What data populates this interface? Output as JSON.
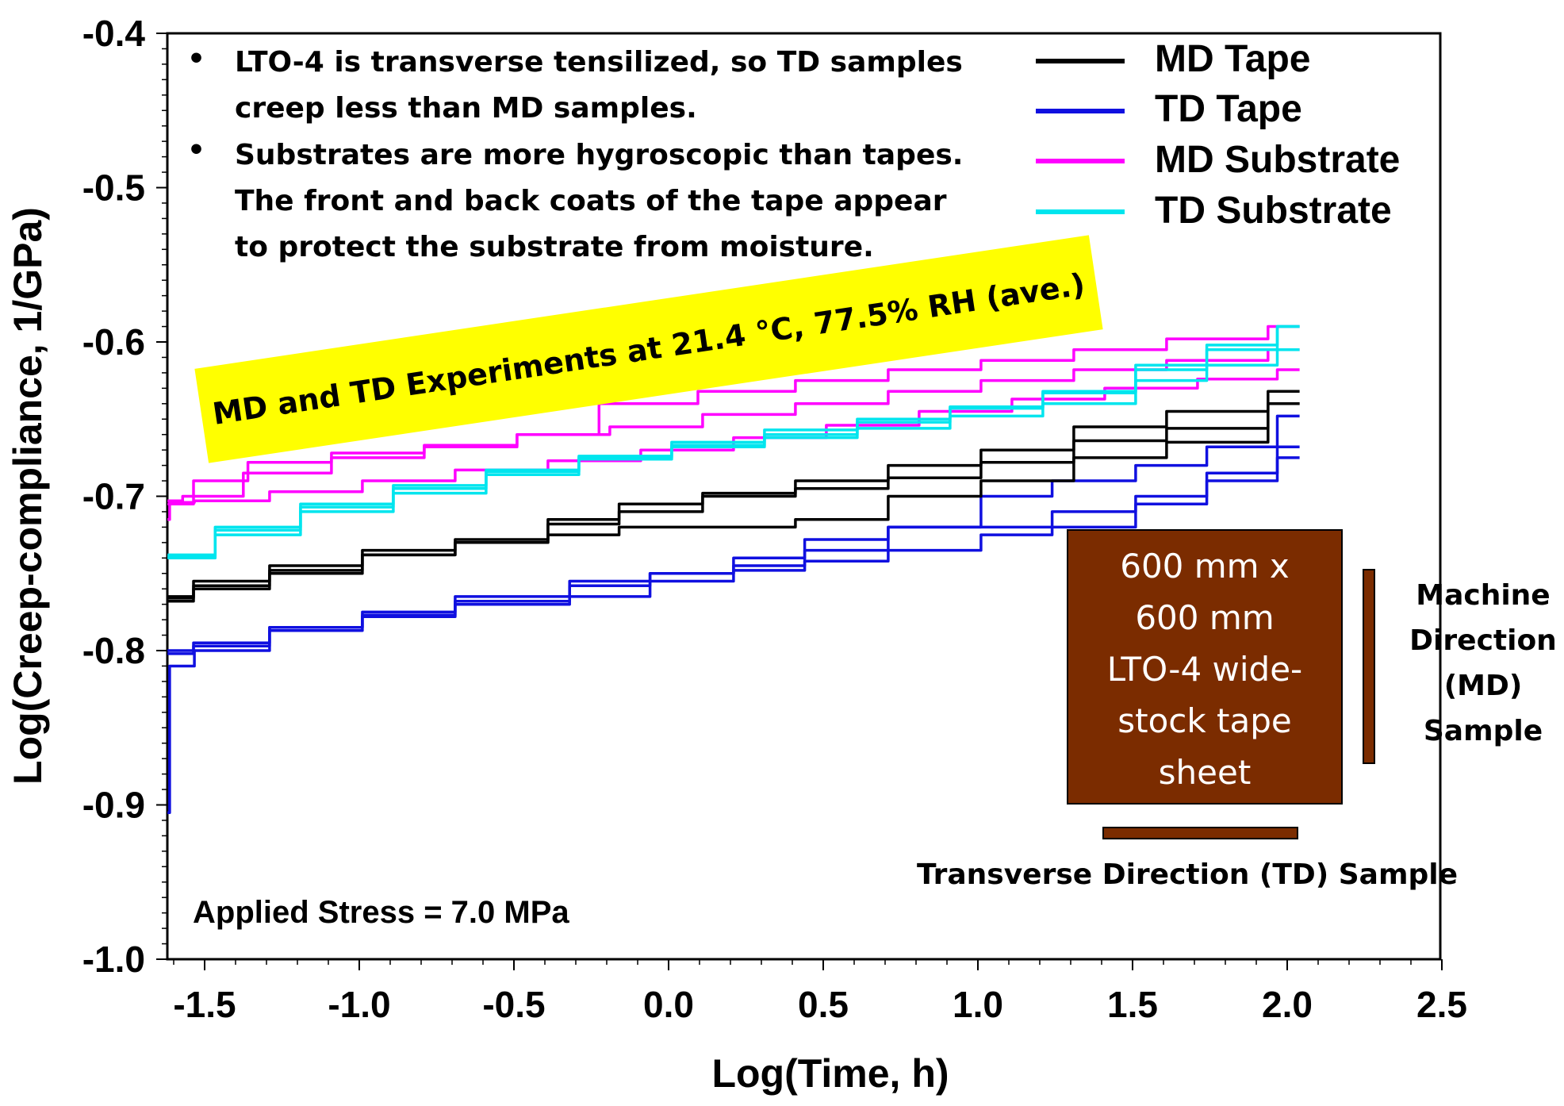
{
  "chart_data": {
    "type": "line",
    "xlabel": "Log(Time, h)",
    "ylabel": "Log(Creep-compliance, 1/GPa)",
    "xlim": [
      -1.65,
      2.5
    ],
    "ylim": [
      -1.0,
      -0.4
    ],
    "x_ticks": [
      -1.5,
      -1.0,
      -0.5,
      0.0,
      0.5,
      1.0,
      1.5,
      2.0,
      2.5
    ],
    "x_tick_labels": [
      "-1.5",
      "-1.0",
      "-0.5",
      "0.0",
      "0.5",
      "1.0",
      "1.5",
      "2.0",
      "2.5"
    ],
    "y_ticks": [
      -1.0,
      -0.9,
      -0.8,
      -0.7,
      -0.6,
      -0.5,
      -0.4
    ],
    "y_tick_labels": [
      "-1.0",
      "-0.9",
      "-0.8",
      "-0.7",
      "-0.6",
      "-0.5",
      "-0.4"
    ],
    "grid": false,
    "legend_position": "top-right",
    "legend": [
      {
        "label": "MD Tape",
        "color": "#000000"
      },
      {
        "label": "TD Tape",
        "color": "#1010e0"
      },
      {
        "label": "MD Substrate",
        "color": "#ff00ff"
      },
      {
        "label": "TD Substrate",
        "color": "#00e5ee"
      }
    ],
    "series": [
      {
        "group": "MD Tape",
        "color": "#000000",
        "x": [
          -1.62,
          -1.5,
          -1.2,
          -0.9,
          -0.6,
          -0.3,
          -0.1,
          0.2,
          0.5,
          0.8,
          1.1,
          1.4,
          1.7,
          2.04
        ],
        "y": [
          -0.765,
          -0.755,
          -0.745,
          -0.735,
          -0.73,
          -0.718,
          -0.71,
          -0.7,
          -0.69,
          -0.68,
          -0.67,
          -0.655,
          -0.645,
          -0.632
        ]
      },
      {
        "group": "MD Tape",
        "color": "#000000",
        "x": [
          -1.62,
          -1.5,
          -1.2,
          -0.9,
          -0.6,
          -0.3,
          -0.1,
          0.2,
          0.5,
          0.8,
          1.1,
          1.4,
          1.7,
          2.04
        ],
        "y": [
          -0.766,
          -0.758,
          -0.748,
          -0.738,
          -0.73,
          -0.715,
          -0.705,
          -0.698,
          -0.695,
          -0.688,
          -0.678,
          -0.664,
          -0.656,
          -0.64
        ]
      },
      {
        "group": "MD Tape",
        "color": "#000000",
        "x": [
          -1.62,
          -1.5,
          -1.2,
          -0.9,
          -0.6,
          -0.3,
          -0.1,
          0.2,
          0.5,
          0.8,
          1.1,
          1.4,
          1.7,
          2.04
        ],
        "y": [
          -0.768,
          -0.76,
          -0.75,
          -0.738,
          -0.728,
          -0.725,
          -0.72,
          -0.72,
          -0.715,
          -0.7,
          -0.69,
          -0.675,
          -0.665,
          -0.64
        ]
      },
      {
        "group": "TD Tape",
        "color": "#1010e0",
        "x": [
          -1.62,
          -1.5,
          -1.2,
          -0.9,
          -0.6,
          -0.2,
          0.0,
          0.3,
          0.5,
          0.8,
          1.1,
          1.3,
          1.6,
          1.8,
          2.04
        ],
        "y": [
          -0.8,
          -0.795,
          -0.785,
          -0.775,
          -0.765,
          -0.758,
          -0.75,
          -0.745,
          -0.735,
          -0.72,
          -0.7,
          -0.69,
          -0.68,
          -0.668,
          -0.648
        ]
      },
      {
        "group": "TD Tape",
        "color": "#1010e0",
        "x": [
          -1.62,
          -1.5,
          -1.2,
          -0.9,
          -0.6,
          -0.2,
          0.0,
          0.3,
          0.5,
          0.8,
          1.1,
          1.3,
          1.6,
          1.8,
          2.04
        ],
        "y": [
          -0.802,
          -0.797,
          -0.785,
          -0.777,
          -0.768,
          -0.755,
          -0.75,
          -0.74,
          -0.728,
          -0.72,
          -0.72,
          -0.71,
          -0.7,
          -0.685,
          -0.668
        ]
      },
      {
        "group": "TD Tape",
        "color": "#1010e0",
        "x": [
          -1.62,
          -1.61,
          -1.5,
          -1.2,
          -0.9,
          -0.6,
          -0.2,
          0.0,
          0.3,
          0.5,
          0.8,
          1.1,
          1.3,
          1.6,
          1.8,
          2.04
        ],
        "y": [
          -0.905,
          -0.81,
          -0.8,
          -0.787,
          -0.778,
          -0.77,
          -0.765,
          -0.755,
          -0.748,
          -0.742,
          -0.735,
          -0.725,
          -0.72,
          -0.705,
          -0.69,
          -0.675
        ]
      },
      {
        "group": "MD Substrate",
        "color": "#ff00ff",
        "x": [
          -1.62,
          -1.55,
          -1.3,
          -1.0,
          -0.7,
          -0.4,
          -0.15,
          0.2,
          0.5,
          0.8,
          1.1,
          1.4,
          1.7,
          2.04
        ],
        "y": [
          -0.703,
          -0.7,
          -0.685,
          -0.675,
          -0.668,
          -0.66,
          -0.64,
          -0.632,
          -0.625,
          -0.618,
          -0.612,
          -0.605,
          -0.598,
          -0.59
        ]
      },
      {
        "group": "MD Substrate",
        "color": "#ff00ff",
        "x": [
          -1.62,
          -1.5,
          -1.3,
          -1.0,
          -0.7,
          -0.4,
          -0.1,
          0.2,
          0.5,
          0.8,
          1.1,
          1.4,
          1.7,
          2.04
        ],
        "y": [
          -0.705,
          -0.69,
          -0.678,
          -0.672,
          -0.667,
          -0.66,
          -0.655,
          -0.647,
          -0.64,
          -0.632,
          -0.625,
          -0.618,
          -0.612,
          -0.605
        ]
      },
      {
        "group": "MD Substrate",
        "color": "#ff00ff",
        "x": [
          -1.62,
          -1.61,
          -1.5,
          -1.2,
          -0.9,
          -0.6,
          -0.3,
          0.0,
          0.3,
          0.6,
          0.9,
          1.2,
          1.5,
          1.8,
          2.04
        ],
        "y": [
          -0.715,
          -0.704,
          -0.703,
          -0.697,
          -0.69,
          -0.683,
          -0.677,
          -0.67,
          -0.662,
          -0.654,
          -0.645,
          -0.637,
          -0.63,
          -0.624,
          -0.618
        ]
      },
      {
        "group": "TD Substrate",
        "color": "#00e5ee",
        "x": [
          -1.62,
          -1.4,
          -1.1,
          -0.8,
          -0.5,
          -0.2,
          0.1,
          0.4,
          0.7,
          1.0,
          1.3,
          1.6,
          1.8,
          2.04
        ],
        "y": [
          -0.74,
          -0.722,
          -0.707,
          -0.695,
          -0.684,
          -0.674,
          -0.665,
          -0.657,
          -0.65,
          -0.642,
          -0.632,
          -0.618,
          -0.605,
          -0.59
        ]
      },
      {
        "group": "TD Substrate",
        "color": "#00e5ee",
        "x": [
          -1.62,
          -1.4,
          -1.1,
          -0.8,
          -0.5,
          -0.2,
          0.1,
          0.4,
          0.7,
          1.0,
          1.3,
          1.6,
          1.8,
          2.04
        ],
        "y": [
          -0.739,
          -0.72,
          -0.705,
          -0.693,
          -0.683,
          -0.675,
          -0.667,
          -0.66,
          -0.652,
          -0.643,
          -0.633,
          -0.615,
          -0.602,
          -0.59
        ]
      },
      {
        "group": "TD Substrate",
        "color": "#00e5ee",
        "x": [
          -1.62,
          -1.4,
          -1.1,
          -0.8,
          -0.5,
          -0.2,
          0.1,
          0.4,
          0.7,
          1.0,
          1.3,
          1.6,
          1.8,
          2.04
        ],
        "y": [
          -0.738,
          -0.725,
          -0.71,
          -0.698,
          -0.686,
          -0.676,
          -0.668,
          -0.662,
          -0.656,
          -0.648,
          -0.64,
          -0.625,
          -0.615,
          -0.605
        ]
      }
    ],
    "annotations": {
      "notes": [
        "LTO-4 is transverse tensilized, so TD samples",
        "creep less than MD samples.",
        "Substrates are more hygroscopic than tapes.",
        "The front and back coats of the tape appear",
        "to protect the substrate from moisture."
      ],
      "bullet": "•",
      "banner": "MD and TD Experiments at 21.4 °C, 77.5% RH (ave.)",
      "banner_color": "#ffff00",
      "stress": "Applied Stress = 7.0 MPa",
      "sheet_lines": [
        "600 mm x",
        "600 mm",
        "LTO-4 wide-",
        "stock tape",
        "sheet"
      ],
      "sheet_color": "#7b2c00",
      "md_sample_lines": [
        "Machine",
        "Direction",
        "(MD)",
        "Sample"
      ],
      "td_sample": "Transverse Direction (TD) Sample"
    }
  }
}
